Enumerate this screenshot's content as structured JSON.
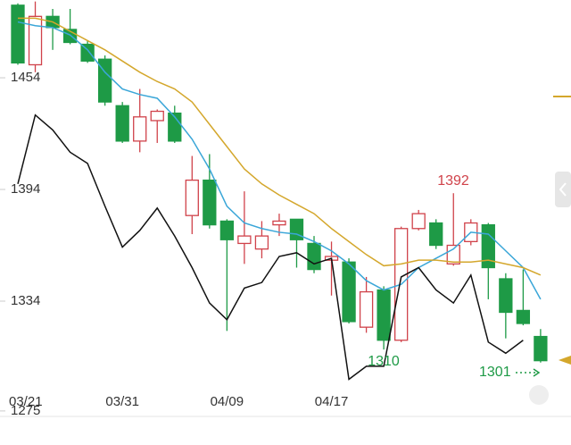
{
  "chart_data": {
    "type": "candlestick",
    "categories": [
      "03/21",
      null,
      null,
      null,
      null,
      null,
      "03/31",
      null,
      null,
      null,
      null,
      null,
      "04/09",
      null,
      null,
      null,
      null,
      null,
      "04/17",
      null,
      null,
      null,
      null,
      null,
      null,
      null,
      null,
      null,
      null,
      null,
      null
    ],
    "open": [
      1493,
      1461,
      1487,
      1480,
      1472,
      1464,
      1439,
      1420,
      1431,
      1435,
      1380,
      1399,
      1377,
      1365,
      1362,
      1375,
      1378,
      1365,
      1356,
      1355,
      1320,
      1340,
      1313,
      1373,
      1376,
      1354,
      1366,
      1375,
      1346,
      1329,
      1315
    ],
    "high": [
      1494,
      1495,
      1491,
      1491,
      1474,
      1466,
      1441,
      1448,
      1437,
      1439,
      1412,
      1413,
      1378,
      1393,
      1377,
      1381,
      1378,
      1369,
      1366,
      1357,
      1347,
      1342,
      1374,
      1383,
      1378,
      1392,
      1378,
      1376,
      1349,
      1351,
      1319
    ],
    "low": [
      1461,
      1457,
      1469,
      1472,
      1462,
      1439,
      1419,
      1414,
      1419,
      1419,
      1370,
      1373,
      1318,
      1354,
      1357,
      1369,
      1352,
      1349,
      1337,
      1322,
      1317,
      1308,
      1312,
      1372,
      1362,
      1353,
      1364,
      1335,
      1314,
      1321,
      1301
    ],
    "close": [
      1462,
      1487,
      1481,
      1473,
      1463,
      1441,
      1420,
      1433,
      1436,
      1420,
      1399,
      1375,
      1367,
      1369,
      1369,
      1377,
      1367,
      1351,
      1358,
      1323,
      1339,
      1313,
      1373,
      1381,
      1364,
      1364,
      1376,
      1352,
      1328,
      1322,
      1302
    ],
    "up_color": "#d0424a",
    "down_color": "#1e9a46",
    "series": [
      {
        "color": "#3aa6d8",
        "values": [
          1484,
          1482,
          1481,
          1477,
          1469,
          1457,
          1448,
          1445,
          1443,
          1433,
          1421,
          1405,
          1385,
          1376,
          1373,
          1371,
          1370,
          1366,
          1361,
          1354,
          1345,
          1340,
          1343,
          1352,
          1357,
          1362,
          1371,
          1370,
          1361,
          1352,
          1335
        ]
      },
      {
        "color": "#d4a72c",
        "values": [
          1486,
          1486,
          1484,
          1479,
          1474,
          1469,
          1463,
          1457,
          1452,
          1448,
          1441,
          1429,
          1417,
          1405,
          1397,
          1391,
          1386,
          1381,
          1373,
          1366,
          1359,
          1353,
          1354,
          1356,
          1356,
          1355,
          1355,
          1356,
          1354,
          1352,
          1348
        ]
      },
      {
        "color": "#111111",
        "values": [
          1397,
          1434,
          1426,
          1414,
          1408,
          1385,
          1363,
          1372,
          1384,
          1369,
          1352,
          1333,
          1324,
          1341,
          1344,
          1358,
          1360,
          1354,
          1357,
          1292,
          1299,
          1299,
          1347,
          1352,
          1340,
          1333,
          1348,
          1312,
          1306,
          1313,
          null
        ]
      }
    ],
    "annotations": [
      {
        "text": "1392",
        "color": "#d0424a"
      },
      {
        "text": "1310",
        "color": "#1e9a46"
      },
      {
        "text": "1301",
        "color": "#1e9a46"
      }
    ],
    "ylim": [
      1256.7,
      1495.8
    ],
    "yticks": [
      1454,
      1394,
      1334,
      1275
    ]
  }
}
